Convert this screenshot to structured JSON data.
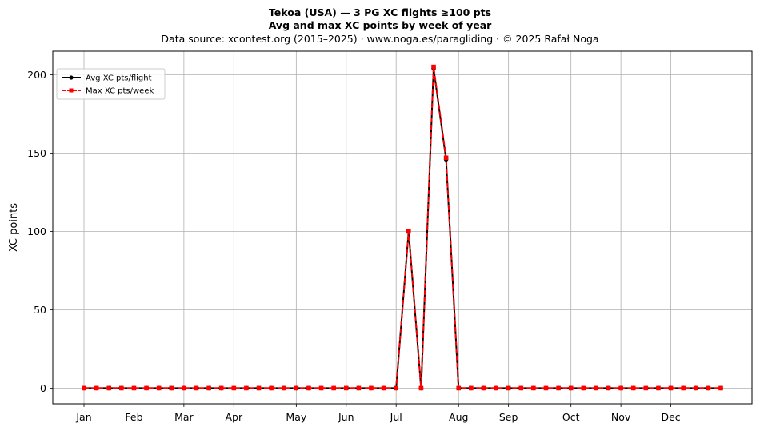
{
  "header": {
    "title_line1": "Tekoa (USA)  —  3 PG XC flights ≥100 pts",
    "title_line2": "Avg and max XC points by week of year",
    "subtitle": "Data source: xcontest.org (2015–2025)  ·  www.noga.es/paragliding  ·  © 2025 Rafał Noga"
  },
  "chart_data": {
    "type": "line",
    "title": "Tekoa (USA)  —  3 PG XC flights ≥100 pts",
    "subtitle": "Avg and max XC points by week of year",
    "xlabel": "",
    "ylabel": "XC points",
    "x_unit": "week of year",
    "xlim": [
      -1.5,
      54.5
    ],
    "ylim": [
      -10,
      215
    ],
    "yticks": [
      0,
      50,
      100,
      150,
      200
    ],
    "grid": true,
    "legend_position": "upper-left",
    "month_ticks": [
      {
        "label": "Jan",
        "week": 1
      },
      {
        "label": "Feb",
        "week": 5
      },
      {
        "label": "Mar",
        "week": 9
      },
      {
        "label": "Apr",
        "week": 13
      },
      {
        "label": "May",
        "week": 18
      },
      {
        "label": "Jun",
        "week": 22
      },
      {
        "label": "Jul",
        "week": 26
      },
      {
        "label": "Aug",
        "week": 31
      },
      {
        "label": "Sep",
        "week": 35
      },
      {
        "label": "Oct",
        "week": 40
      },
      {
        "label": "Nov",
        "week": 44
      },
      {
        "label": "Dec",
        "week": 48
      }
    ],
    "x": [
      1,
      2,
      3,
      4,
      5,
      6,
      7,
      8,
      9,
      10,
      11,
      12,
      13,
      14,
      15,
      16,
      17,
      18,
      19,
      20,
      21,
      22,
      23,
      24,
      25,
      26,
      27,
      28,
      29,
      30,
      31,
      32,
      33,
      34,
      35,
      36,
      37,
      38,
      39,
      40,
      41,
      42,
      43,
      44,
      45,
      46,
      47,
      48,
      49,
      50,
      51,
      52
    ],
    "series": [
      {
        "name": "Avg XC pts/flight",
        "color": "#000000",
        "line_style": "solid",
        "marker": "circle",
        "values": [
          0,
          0,
          0,
          0,
          0,
          0,
          0,
          0,
          0,
          0,
          0,
          0,
          0,
          0,
          0,
          0,
          0,
          0,
          0,
          0,
          0,
          0,
          0,
          0,
          0,
          0,
          100,
          0,
          204,
          146,
          0,
          0,
          0,
          0,
          0,
          0,
          0,
          0,
          0,
          0,
          0,
          0,
          0,
          0,
          0,
          0,
          0,
          0,
          0,
          0,
          0,
          0
        ]
      },
      {
        "name": "Max XC pts/week",
        "color": "#ff0000",
        "line_style": "dashed",
        "marker": "square",
        "values": [
          0,
          0,
          0,
          0,
          0,
          0,
          0,
          0,
          0,
          0,
          0,
          0,
          0,
          0,
          0,
          0,
          0,
          0,
          0,
          0,
          0,
          0,
          0,
          0,
          0,
          0,
          100,
          0,
          205,
          147,
          0,
          0,
          0,
          0,
          0,
          0,
          0,
          0,
          0,
          0,
          0,
          0,
          0,
          0,
          0,
          0,
          0,
          0,
          0,
          0,
          0,
          0
        ]
      }
    ]
  }
}
